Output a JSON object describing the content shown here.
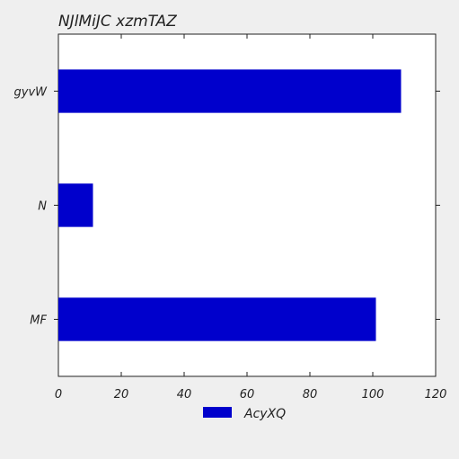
{
  "chart_data": {
    "type": "bar",
    "orientation": "horizontal",
    "title": "NJlMiJC xzmTAZ",
    "categories": [
      "MF",
      "N",
      "gyvW"
    ],
    "series": [
      {
        "name": "AcyXQ",
        "values": [
          101,
          11,
          109
        ],
        "color": "#0000cc"
      }
    ],
    "xlim": [
      0,
      120
    ],
    "x_ticks": [
      "0",
      "20",
      "40",
      "60",
      "80",
      "100",
      "120"
    ],
    "xlabel": "",
    "ylabel": "",
    "grid": false,
    "legend_position": "bottom-center"
  }
}
